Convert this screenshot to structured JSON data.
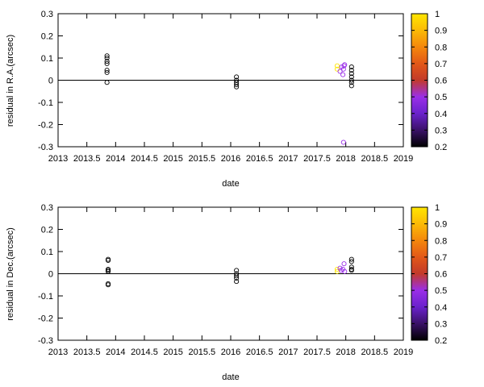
{
  "palette": {
    "stops": [
      {
        "v": 0.2,
        "color": "#000000"
      },
      {
        "v": 0.3,
        "color": "#3a1168"
      },
      {
        "v": 0.4,
        "color": "#6a22cc"
      },
      {
        "v": 0.5,
        "color": "#9a2fe8"
      },
      {
        "v": 0.6,
        "color": "#c23a2a"
      },
      {
        "v": 0.7,
        "color": "#e25818"
      },
      {
        "v": 0.8,
        "color": "#f4870c"
      },
      {
        "v": 0.9,
        "color": "#fbba06"
      },
      {
        "v": 1.0,
        "color": "#ffe600"
      }
    ]
  },
  "chart_data": [
    {
      "type": "scatter",
      "xlabel": "date",
      "ylabel": "residual in R.A.(arcsec)",
      "xlim": [
        2013,
        2019
      ],
      "ylim": [
        -0.3,
        0.3
      ],
      "xticks": [
        "2013",
        "2013.5",
        "2014",
        "2014.5",
        "2015",
        "2015.5",
        "2016",
        "2016.5",
        "2017",
        "2017.5",
        "2018",
        "2018.5",
        "2019"
      ],
      "yticks": [
        "-0.3",
        "-0.2",
        "-0.1",
        "0",
        "0.1",
        "0.2",
        "0.3"
      ],
      "reference_line_y": 0,
      "colorbar": {
        "range": [
          0.2,
          1.0
        ],
        "ticks": [
          "0.2",
          "0.3",
          "0.4",
          "0.5",
          "0.6",
          "0.7",
          "0.8",
          "0.9",
          "1"
        ]
      },
      "points": [
        {
          "x": 2013.85,
          "y": 0.11,
          "c": 0.2
        },
        {
          "x": 2013.85,
          "y": 0.1,
          "c": 0.2
        },
        {
          "x": 2013.85,
          "y": 0.085,
          "c": 0.2
        },
        {
          "x": 2013.85,
          "y": 0.075,
          "c": 0.2
        },
        {
          "x": 2013.85,
          "y": 0.045,
          "c": 0.2
        },
        {
          "x": 2013.85,
          "y": 0.035,
          "c": 0.2
        },
        {
          "x": 2013.85,
          "y": -0.01,
          "c": 0.2
        },
        {
          "x": 2016.1,
          "y": 0.015,
          "c": 0.2
        },
        {
          "x": 2016.1,
          "y": 0.0,
          "c": 0.2
        },
        {
          "x": 2016.1,
          "y": -0.01,
          "c": 0.2
        },
        {
          "x": 2016.1,
          "y": -0.02,
          "c": 0.2
        },
        {
          "x": 2016.1,
          "y": -0.03,
          "c": 0.2
        },
        {
          "x": 2017.85,
          "y": 0.065,
          "c": 1.0
        },
        {
          "x": 2017.85,
          "y": 0.05,
          "c": 1.0
        },
        {
          "x": 2017.93,
          "y": 0.06,
          "c": 0.5
        },
        {
          "x": 2017.9,
          "y": 0.04,
          "c": 0.5
        },
        {
          "x": 2017.97,
          "y": 0.065,
          "c": 0.5
        },
        {
          "x": 2017.98,
          "y": 0.07,
          "c": 0.5
        },
        {
          "x": 2017.96,
          "y": 0.05,
          "c": 0.5
        },
        {
          "x": 2017.95,
          "y": 0.025,
          "c": 0.5
        },
        {
          "x": 2017.96,
          "y": -0.28,
          "c": 0.5
        },
        {
          "x": 2018.1,
          "y": 0.06,
          "c": 0.2
        },
        {
          "x": 2018.1,
          "y": 0.045,
          "c": 0.2
        },
        {
          "x": 2018.1,
          "y": 0.03,
          "c": 0.2
        },
        {
          "x": 2018.1,
          "y": 0.015,
          "c": 0.2
        },
        {
          "x": 2018.1,
          "y": 0.0,
          "c": 0.2
        },
        {
          "x": 2018.1,
          "y": -0.01,
          "c": 0.2
        },
        {
          "x": 2018.1,
          "y": -0.025,
          "c": 0.2
        }
      ]
    },
    {
      "type": "scatter",
      "xlabel": "date",
      "ylabel": "residual in Dec.(arcsec)",
      "xlim": [
        2013,
        2019
      ],
      "ylim": [
        -0.3,
        0.3
      ],
      "xticks": [
        "2013",
        "2013.5",
        "2014",
        "2014.5",
        "2015",
        "2015.5",
        "2016",
        "2016.5",
        "2017",
        "2017.5",
        "2018",
        "2018.5",
        "2019"
      ],
      "yticks": [
        "-0.3",
        "-0.2",
        "-0.1",
        "0",
        "0.1",
        "0.2",
        "0.3"
      ],
      "reference_line_y": 0,
      "colorbar": {
        "range": [
          0.2,
          1.0
        ],
        "ticks": [
          "0.2",
          "0.3",
          "0.4",
          "0.5",
          "0.6",
          "0.7",
          "0.8",
          "0.9",
          "1"
        ]
      },
      "points": [
        {
          "x": 2013.87,
          "y": 0.065,
          "c": 0.2
        },
        {
          "x": 2013.87,
          "y": 0.06,
          "c": 0.2
        },
        {
          "x": 2013.87,
          "y": 0.02,
          "c": 0.2
        },
        {
          "x": 2013.87,
          "y": 0.015,
          "c": 0.2
        },
        {
          "x": 2013.87,
          "y": 0.01,
          "c": 0.2
        },
        {
          "x": 2013.87,
          "y": -0.045,
          "c": 0.2
        },
        {
          "x": 2013.87,
          "y": -0.05,
          "c": 0.2
        },
        {
          "x": 2016.1,
          "y": 0.015,
          "c": 0.2
        },
        {
          "x": 2016.1,
          "y": 0.0,
          "c": 0.2
        },
        {
          "x": 2016.1,
          "y": -0.01,
          "c": 0.2
        },
        {
          "x": 2016.1,
          "y": -0.02,
          "c": 0.2
        },
        {
          "x": 2016.1,
          "y": -0.035,
          "c": 0.2
        },
        {
          "x": 2017.85,
          "y": 0.02,
          "c": 1.0
        },
        {
          "x": 2017.85,
          "y": 0.01,
          "c": 1.0
        },
        {
          "x": 2017.9,
          "y": 0.025,
          "c": 0.5
        },
        {
          "x": 2017.92,
          "y": 0.015,
          "c": 0.5
        },
        {
          "x": 2017.95,
          "y": 0.02,
          "c": 0.5
        },
        {
          "x": 2017.97,
          "y": 0.045,
          "c": 0.5
        },
        {
          "x": 2017.98,
          "y": 0.01,
          "c": 0.5
        },
        {
          "x": 2018.1,
          "y": 0.065,
          "c": 0.2
        },
        {
          "x": 2018.1,
          "y": 0.055,
          "c": 0.2
        },
        {
          "x": 2018.1,
          "y": 0.03,
          "c": 0.2
        },
        {
          "x": 2018.1,
          "y": 0.02,
          "c": 0.2
        },
        {
          "x": 2018.1,
          "y": 0.015,
          "c": 0.2
        }
      ]
    }
  ]
}
